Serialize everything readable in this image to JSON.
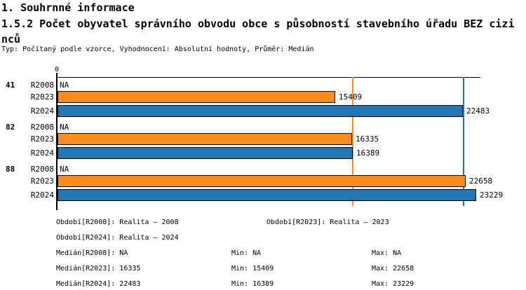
{
  "header": {
    "title1": "1. Souhrnné informace",
    "title2_line1": "1.5.2 Počet obyvatel správního obvodu obce s působností stavebního úřadu BEZ cizi",
    "title2_line2": "nců",
    "subtitle": "Typ: Počítaný podle vzorce, Vyhodnocení: Absolutní hodnoty, Průměr: Medián"
  },
  "chart_data": {
    "type": "bar",
    "orientation": "horizontal",
    "value_axis": {
      "origin_label": "0",
      "min": 0,
      "max_visible": 23500
    },
    "legend_position": "bottom",
    "grid": false,
    "series_colors": {
      "R2008": "#ffffff",
      "R2023": "#FF8C1A",
      "R2024": "#2077B4"
    },
    "groups": [
      {
        "label": "41",
        "bars": [
          {
            "series": "R2008",
            "value": null,
            "display": "NA"
          },
          {
            "series": "R2023",
            "value": 15409,
            "display": "15409"
          },
          {
            "series": "R2024",
            "value": 22483,
            "display": "22483"
          }
        ]
      },
      {
        "label": "82",
        "bars": [
          {
            "series": "R2008",
            "value": null,
            "display": "NA"
          },
          {
            "series": "R2023",
            "value": 16335,
            "display": "16335"
          },
          {
            "series": "R2024",
            "value": 16389,
            "display": "16389"
          }
        ]
      },
      {
        "label": "88",
        "bars": [
          {
            "series": "R2008",
            "value": null,
            "display": "NA"
          },
          {
            "series": "R2023",
            "value": 22658,
            "display": "22658"
          },
          {
            "series": "R2024",
            "value": 23229,
            "display": "23229"
          }
        ]
      }
    ],
    "reference_lines": [
      {
        "name": "median-R2023",
        "value": 16335,
        "color": "#FF8C1A"
      },
      {
        "name": "median-R2024",
        "value": 22483,
        "color": "#2077B4"
      }
    ]
  },
  "footer": {
    "periods": {
      "r2008": "Období[R2008]: Realita – 2008",
      "r2023": "Období[R2023]: Realita – 2023",
      "r2024": "Období[R2024]: Realita – 2024"
    },
    "stats": {
      "median_r2008": "Medián[R2008]: NA",
      "min_r2008": "Min: NA",
      "max_r2008": "Max: NA",
      "median_r2023": "Medián[R2023]: 16335",
      "min_r2023": "Min: 15409",
      "max_r2023": "Max: 22658",
      "median_r2024": "Medián[R2024]: 22483",
      "min_r2024": "Min: 16389",
      "max_r2024": "Max: 23229"
    }
  }
}
